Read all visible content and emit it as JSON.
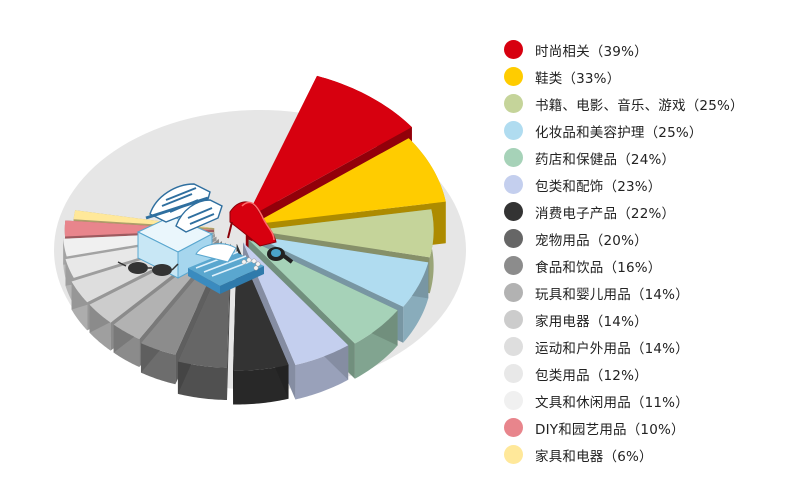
{
  "chart_data": {
    "type": "pie",
    "style": "3d-exploded",
    "legend_position": "right",
    "slices": [
      {
        "label": "时尚相关",
        "value": 39,
        "legend_text": "时尚相关（39%）",
        "color": "#d7000f"
      },
      {
        "label": "鞋类",
        "value": 33,
        "legend_text": "鞋类（33%）",
        "color": "#ffcc00"
      },
      {
        "label": "书籍、电影、音乐、游戏",
        "value": 25,
        "legend_text": "书籍、电影、音乐、游戏（25%）",
        "color": "#c5d49a"
      },
      {
        "label": "化妆品和美容护理",
        "value": 25,
        "legend_text": "化妆品和美容护理（25%）",
        "color": "#b0dcf0"
      },
      {
        "label": "药店和保健品",
        "value": 24,
        "legend_text": "药店和保健品（24%）",
        "color": "#a6d2b8"
      },
      {
        "label": "包类和配饰",
        "value": 23,
        "legend_text": "包类和配饰（23%）",
        "color": "#c4cfee"
      },
      {
        "label": "消费电子产品",
        "value": 22,
        "legend_text": "消费电子产品（22%）",
        "color": "#333333"
      },
      {
        "label": "宠物用品",
        "value": 20,
        "legend_text": "宠物用品（20%）",
        "color": "#666666"
      },
      {
        "label": "食品和饮品",
        "value": 16,
        "legend_text": "食品和饮品（16%）",
        "color": "#8c8c8c"
      },
      {
        "label": "玩具和婴儿用品",
        "value": 14,
        "legend_text": "玩具和婴儿用品（14%）",
        "color": "#b2b2b2"
      },
      {
        "label": "家用电器",
        "value": 14,
        "legend_text": "家用电器（14%）",
        "color": "#cccccc"
      },
      {
        "label": "运动和户外用品",
        "value": 14,
        "legend_text": "运动和户外用品（14%）",
        "color": "#dedede"
      },
      {
        "label": "包类用品",
        "value": 12,
        "legend_text": "包类用品（12%）",
        "color": "#e8e8e8"
      },
      {
        "label": "文具和休闲用品",
        "value": 11,
        "legend_text": "文具和休闲用品（11%）",
        "color": "#f0f0f0"
      },
      {
        "label": "DIY和园艺用品",
        "value": 10,
        "legend_text": "DIY和园艺用品（10%）",
        "color": "#e8858c"
      },
      {
        "label": "家具和电器",
        "value": 6,
        "legend_text": "家具和电器（6%）",
        "color": "#ffe89a"
      }
    ]
  }
}
